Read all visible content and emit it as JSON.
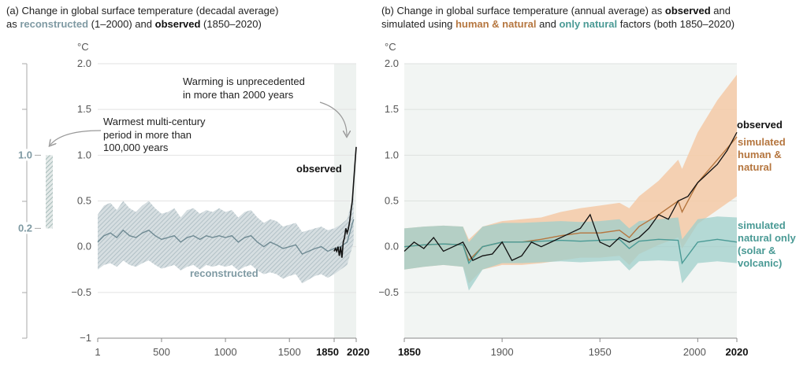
{
  "panel_a": {
    "title_line1": "(a) Change in global surface temperature (decadal average)",
    "title_line2_prefix": "as ",
    "title_line2_recon": "reconstructed",
    "title_line2_mid": " (1–2000) and ",
    "title_line2_obs": "observed",
    "title_line2_suffix": " (1850–2020)",
    "unit": "°C",
    "annotation_unprecedented": [
      "Warming is unprecedented",
      "in more than 2000 years"
    ],
    "annotation_warmest": [
      "Warmest multi-century",
      "period in more than",
      "100,000 years"
    ],
    "label_observed": "observed",
    "label_reconstructed": "reconstructed",
    "range_high": "1.0",
    "range_low": "0.2"
  },
  "panel_b": {
    "title_line1_prefix": "(b) Change in global surface temperature (annual average) as ",
    "title_line1_obs": "observed",
    "title_line1_suffix": " and",
    "title_line2_prefix": "simulated using ",
    "title_line2_human": "human & natural",
    "title_line2_mid": " and ",
    "title_line2_nat": "only natural",
    "title_line2_suffix": " factors (both 1850–2020)",
    "unit": "°C",
    "label_observed": "observed",
    "label_human": [
      "simulated",
      "human &",
      "natural"
    ],
    "label_natural": [
      "simulated",
      "natural only",
      "(solar &",
      "volcanic)"
    ]
  },
  "colors": {
    "observed": "#111111",
    "reconstructed": "#7f9aa3",
    "reconstructed_band": "#c3cfd4",
    "human": "#b5763f",
    "human_band": "#f4c9a6",
    "natural": "#4a9a95",
    "natural_band": "#9fcfcb",
    "overlap_band": "#c8c0b8",
    "shade": "#eef2f0"
  },
  "chart_data": [
    {
      "type": "line",
      "ylim": [
        -1,
        2
      ],
      "yticks": [
        "2.0",
        "1.5",
        "1.0",
        "0.5",
        "0.0",
        "−0.5",
        "−1"
      ],
      "ytick_values": [
        2.0,
        1.5,
        1.0,
        0.5,
        0.0,
        -0.5,
        -1.0
      ],
      "xticks": [
        "1",
        "500",
        "1000",
        "1500",
        "1850",
        "2020"
      ],
      "xtick_values": [
        1,
        500,
        1000,
        1500,
        1850,
        2020
      ],
      "xtick_bold": [
        "1850",
        "2020"
      ],
      "warmest_period_range": [
        0.2,
        1.0
      ],
      "series": [
        {
          "name": "reconstructed",
          "x": [
            1,
            50,
            100,
            150,
            200,
            250,
            300,
            350,
            400,
            450,
            500,
            550,
            600,
            650,
            700,
            750,
            800,
            850,
            900,
            950,
            1000,
            1050,
            1100,
            1150,
            1200,
            1250,
            1300,
            1350,
            1400,
            1450,
            1500,
            1550,
            1600,
            1650,
            1700,
            1750,
            1800,
            1850,
            1900,
            1950,
            2000
          ],
          "y": [
            0.05,
            0.12,
            0.15,
            0.1,
            0.18,
            0.12,
            0.1,
            0.15,
            0.18,
            0.12,
            0.08,
            0.1,
            0.12,
            0.05,
            0.1,
            0.12,
            0.08,
            0.12,
            0.1,
            0.12,
            0.1,
            0.12,
            0.05,
            0.1,
            0.12,
            0.05,
            0.0,
            0.05,
            0.02,
            -0.02,
            0.0,
            0.02,
            -0.08,
            -0.05,
            -0.02,
            0.0,
            -0.05,
            -0.02,
            0.0,
            0.05,
            0.3
          ],
          "upper": [
            0.35,
            0.45,
            0.48,
            0.4,
            0.5,
            0.42,
            0.38,
            0.45,
            0.5,
            0.42,
            0.36,
            0.38,
            0.42,
            0.32,
            0.4,
            0.42,
            0.36,
            0.4,
            0.38,
            0.42,
            0.38,
            0.4,
            0.32,
            0.38,
            0.4,
            0.32,
            0.26,
            0.3,
            0.28,
            0.22,
            0.24,
            0.26,
            0.16,
            0.18,
            0.2,
            0.22,
            0.18,
            0.2,
            0.24,
            0.3,
            0.55
          ],
          "lower": [
            -0.25,
            -0.2,
            -0.18,
            -0.22,
            -0.15,
            -0.2,
            -0.22,
            -0.18,
            -0.15,
            -0.2,
            -0.24,
            -0.22,
            -0.2,
            -0.26,
            -0.22,
            -0.2,
            -0.25,
            -0.2,
            -0.22,
            -0.2,
            -0.22,
            -0.2,
            -0.26,
            -0.22,
            -0.2,
            -0.26,
            -0.3,
            -0.28,
            -0.3,
            -0.35,
            -0.32,
            -0.3,
            -0.4,
            -0.36,
            -0.32,
            -0.3,
            -0.34,
            -0.3,
            -0.25,
            -0.2,
            0.05
          ]
        },
        {
          "name": "observed",
          "x": [
            1850,
            1860,
            1870,
            1880,
            1890,
            1900,
            1910,
            1920,
            1930,
            1940,
            1950,
            1960,
            1970,
            1980,
            1990,
            2000,
            2010,
            2020
          ],
          "y": [
            -0.05,
            -0.02,
            -0.05,
            0.0,
            -0.1,
            0.0,
            -0.12,
            0.05,
            0.1,
            0.2,
            0.15,
            0.2,
            0.28,
            0.4,
            0.5,
            0.7,
            0.9,
            1.09
          ]
        }
      ]
    },
    {
      "type": "line",
      "ylim": [
        -1,
        2
      ],
      "yticks": [
        "2.0",
        "1.5",
        "1.0",
        "0.5",
        "0.0",
        "−0.5"
      ],
      "ytick_values": [
        2.0,
        1.5,
        1.0,
        0.5,
        0.0,
        -0.5
      ],
      "xticks": [
        "1850",
        "1900",
        "1950",
        "2000",
        "2020"
      ],
      "xtick_values": [
        1850,
        1900,
        1950,
        2000,
        2020
      ],
      "xtick_bold": [
        "1850",
        "2020"
      ],
      "series": [
        {
          "name": "human & natural",
          "x": [
            1850,
            1860,
            1870,
            1880,
            1883,
            1890,
            1900,
            1910,
            1920,
            1930,
            1940,
            1950,
            1960,
            1965,
            1970,
            1980,
            1990,
            1992,
            2000,
            2010,
            2020
          ],
          "y": [
            0.0,
            0.02,
            0.03,
            0.02,
            -0.15,
            0.0,
            0.05,
            0.05,
            0.08,
            0.12,
            0.15,
            0.15,
            0.18,
            0.1,
            0.22,
            0.35,
            0.5,
            0.38,
            0.7,
            0.95,
            1.2
          ],
          "upper": [
            0.2,
            0.22,
            0.23,
            0.22,
            0.08,
            0.22,
            0.28,
            0.3,
            0.32,
            0.38,
            0.42,
            0.45,
            0.48,
            0.42,
            0.55,
            0.72,
            0.95,
            0.85,
            1.25,
            1.6,
            1.88
          ],
          "lower": [
            -0.25,
            -0.22,
            -0.2,
            -0.22,
            -0.4,
            -0.25,
            -0.2,
            -0.2,
            -0.18,
            -0.15,
            -0.12,
            -0.12,
            -0.1,
            -0.2,
            -0.08,
            0.02,
            0.1,
            -0.02,
            0.25,
            0.4,
            0.55
          ]
        },
        {
          "name": "natural only",
          "x": [
            1850,
            1860,
            1870,
            1880,
            1883,
            1890,
            1900,
            1910,
            1920,
            1930,
            1940,
            1950,
            1960,
            1965,
            1970,
            1980,
            1990,
            1992,
            2000,
            2010,
            2020
          ],
          "y": [
            0.0,
            0.02,
            0.03,
            0.02,
            -0.18,
            0.0,
            0.05,
            0.05,
            0.06,
            0.07,
            0.06,
            0.07,
            0.08,
            -0.02,
            0.06,
            0.08,
            0.07,
            -0.18,
            0.05,
            0.08,
            0.05
          ],
          "upper": [
            0.2,
            0.22,
            0.23,
            0.22,
            0.05,
            0.22,
            0.26,
            0.26,
            0.27,
            0.28,
            0.27,
            0.28,
            0.3,
            0.2,
            0.28,
            0.3,
            0.32,
            0.08,
            0.3,
            0.33,
            0.32
          ],
          "lower": [
            -0.25,
            -0.22,
            -0.2,
            -0.22,
            -0.48,
            -0.25,
            -0.18,
            -0.18,
            -0.17,
            -0.16,
            -0.17,
            -0.16,
            -0.15,
            -0.26,
            -0.16,
            -0.15,
            -0.16,
            -0.4,
            -0.18,
            -0.16,
            -0.18
          ]
        },
        {
          "name": "observed",
          "x": [
            1850,
            1855,
            1860,
            1865,
            1870,
            1875,
            1880,
            1885,
            1890,
            1895,
            1900,
            1905,
            1910,
            1915,
            1920,
            1925,
            1930,
            1935,
            1940,
            1945,
            1950,
            1955,
            1960,
            1965,
            1970,
            1975,
            1980,
            1985,
            1990,
            1995,
            2000,
            2005,
            2010,
            2015,
            2020
          ],
          "y": [
            -0.05,
            0.05,
            -0.02,
            0.1,
            -0.05,
            0.0,
            0.05,
            -0.15,
            -0.1,
            -0.08,
            0.05,
            -0.15,
            -0.1,
            0.05,
            0.0,
            0.05,
            0.1,
            0.15,
            0.2,
            0.35,
            0.05,
            0.0,
            0.1,
            0.05,
            0.1,
            0.2,
            0.35,
            0.3,
            0.5,
            0.55,
            0.7,
            0.8,
            0.9,
            1.05,
            1.25
          ]
        }
      ]
    }
  ]
}
